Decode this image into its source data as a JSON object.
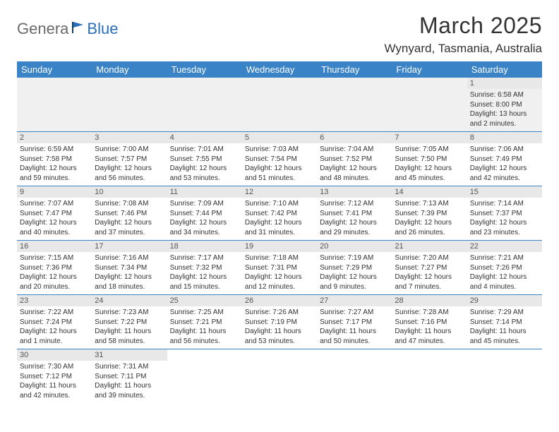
{
  "logo": {
    "gray": "Genera",
    "blue": "Blue"
  },
  "title": "March 2025",
  "location": "Wynyard, Tasmania, Australia",
  "colors": {
    "header_bg": "#3983c6",
    "header_text": "#ffffff",
    "daynum_bg": "#e8e8e8",
    "border": "#3983c6",
    "logo_gray": "#6a6a6a",
    "logo_blue": "#2a6ebb"
  },
  "weekdays": [
    "Sunday",
    "Monday",
    "Tuesday",
    "Wednesday",
    "Thursday",
    "Friday",
    "Saturday"
  ],
  "rows": [
    [
      null,
      null,
      null,
      null,
      null,
      null,
      {
        "n": "1",
        "sr": "Sunrise: 6:58 AM",
        "ss": "Sunset: 8:00 PM",
        "dl": "Daylight: 13 hours and 2 minutes."
      }
    ],
    [
      {
        "n": "2",
        "sr": "Sunrise: 6:59 AM",
        "ss": "Sunset: 7:58 PM",
        "dl": "Daylight: 12 hours and 59 minutes."
      },
      {
        "n": "3",
        "sr": "Sunrise: 7:00 AM",
        "ss": "Sunset: 7:57 PM",
        "dl": "Daylight: 12 hours and 56 minutes."
      },
      {
        "n": "4",
        "sr": "Sunrise: 7:01 AM",
        "ss": "Sunset: 7:55 PM",
        "dl": "Daylight: 12 hours and 53 minutes."
      },
      {
        "n": "5",
        "sr": "Sunrise: 7:03 AM",
        "ss": "Sunset: 7:54 PM",
        "dl": "Daylight: 12 hours and 51 minutes."
      },
      {
        "n": "6",
        "sr": "Sunrise: 7:04 AM",
        "ss": "Sunset: 7:52 PM",
        "dl": "Daylight: 12 hours and 48 minutes."
      },
      {
        "n": "7",
        "sr": "Sunrise: 7:05 AM",
        "ss": "Sunset: 7:50 PM",
        "dl": "Daylight: 12 hours and 45 minutes."
      },
      {
        "n": "8",
        "sr": "Sunrise: 7:06 AM",
        "ss": "Sunset: 7:49 PM",
        "dl": "Daylight: 12 hours and 42 minutes."
      }
    ],
    [
      {
        "n": "9",
        "sr": "Sunrise: 7:07 AM",
        "ss": "Sunset: 7:47 PM",
        "dl": "Daylight: 12 hours and 40 minutes."
      },
      {
        "n": "10",
        "sr": "Sunrise: 7:08 AM",
        "ss": "Sunset: 7:46 PM",
        "dl": "Daylight: 12 hours and 37 minutes."
      },
      {
        "n": "11",
        "sr": "Sunrise: 7:09 AM",
        "ss": "Sunset: 7:44 PM",
        "dl": "Daylight: 12 hours and 34 minutes."
      },
      {
        "n": "12",
        "sr": "Sunrise: 7:10 AM",
        "ss": "Sunset: 7:42 PM",
        "dl": "Daylight: 12 hours and 31 minutes."
      },
      {
        "n": "13",
        "sr": "Sunrise: 7:12 AM",
        "ss": "Sunset: 7:41 PM",
        "dl": "Daylight: 12 hours and 29 minutes."
      },
      {
        "n": "14",
        "sr": "Sunrise: 7:13 AM",
        "ss": "Sunset: 7:39 PM",
        "dl": "Daylight: 12 hours and 26 minutes."
      },
      {
        "n": "15",
        "sr": "Sunrise: 7:14 AM",
        "ss": "Sunset: 7:37 PM",
        "dl": "Daylight: 12 hours and 23 minutes."
      }
    ],
    [
      {
        "n": "16",
        "sr": "Sunrise: 7:15 AM",
        "ss": "Sunset: 7:36 PM",
        "dl": "Daylight: 12 hours and 20 minutes."
      },
      {
        "n": "17",
        "sr": "Sunrise: 7:16 AM",
        "ss": "Sunset: 7:34 PM",
        "dl": "Daylight: 12 hours and 18 minutes."
      },
      {
        "n": "18",
        "sr": "Sunrise: 7:17 AM",
        "ss": "Sunset: 7:32 PM",
        "dl": "Daylight: 12 hours and 15 minutes."
      },
      {
        "n": "19",
        "sr": "Sunrise: 7:18 AM",
        "ss": "Sunset: 7:31 PM",
        "dl": "Daylight: 12 hours and 12 minutes."
      },
      {
        "n": "20",
        "sr": "Sunrise: 7:19 AM",
        "ss": "Sunset: 7:29 PM",
        "dl": "Daylight: 12 hours and 9 minutes."
      },
      {
        "n": "21",
        "sr": "Sunrise: 7:20 AM",
        "ss": "Sunset: 7:27 PM",
        "dl": "Daylight: 12 hours and 7 minutes."
      },
      {
        "n": "22",
        "sr": "Sunrise: 7:21 AM",
        "ss": "Sunset: 7:26 PM",
        "dl": "Daylight: 12 hours and 4 minutes."
      }
    ],
    [
      {
        "n": "23",
        "sr": "Sunrise: 7:22 AM",
        "ss": "Sunset: 7:24 PM",
        "dl": "Daylight: 12 hours and 1 minute."
      },
      {
        "n": "24",
        "sr": "Sunrise: 7:23 AM",
        "ss": "Sunset: 7:22 PM",
        "dl": "Daylight: 11 hours and 58 minutes."
      },
      {
        "n": "25",
        "sr": "Sunrise: 7:25 AM",
        "ss": "Sunset: 7:21 PM",
        "dl": "Daylight: 11 hours and 56 minutes."
      },
      {
        "n": "26",
        "sr": "Sunrise: 7:26 AM",
        "ss": "Sunset: 7:19 PM",
        "dl": "Daylight: 11 hours and 53 minutes."
      },
      {
        "n": "27",
        "sr": "Sunrise: 7:27 AM",
        "ss": "Sunset: 7:17 PM",
        "dl": "Daylight: 11 hours and 50 minutes."
      },
      {
        "n": "28",
        "sr": "Sunrise: 7:28 AM",
        "ss": "Sunset: 7:16 PM",
        "dl": "Daylight: 11 hours and 47 minutes."
      },
      {
        "n": "29",
        "sr": "Sunrise: 7:29 AM",
        "ss": "Sunset: 7:14 PM",
        "dl": "Daylight: 11 hours and 45 minutes."
      }
    ],
    [
      {
        "n": "30",
        "sr": "Sunrise: 7:30 AM",
        "ss": "Sunset: 7:12 PM",
        "dl": "Daylight: 11 hours and 42 minutes."
      },
      {
        "n": "31",
        "sr": "Sunrise: 7:31 AM",
        "ss": "Sunset: 7:11 PM",
        "dl": "Daylight: 11 hours and 39 minutes."
      },
      null,
      null,
      null,
      null,
      null
    ]
  ]
}
